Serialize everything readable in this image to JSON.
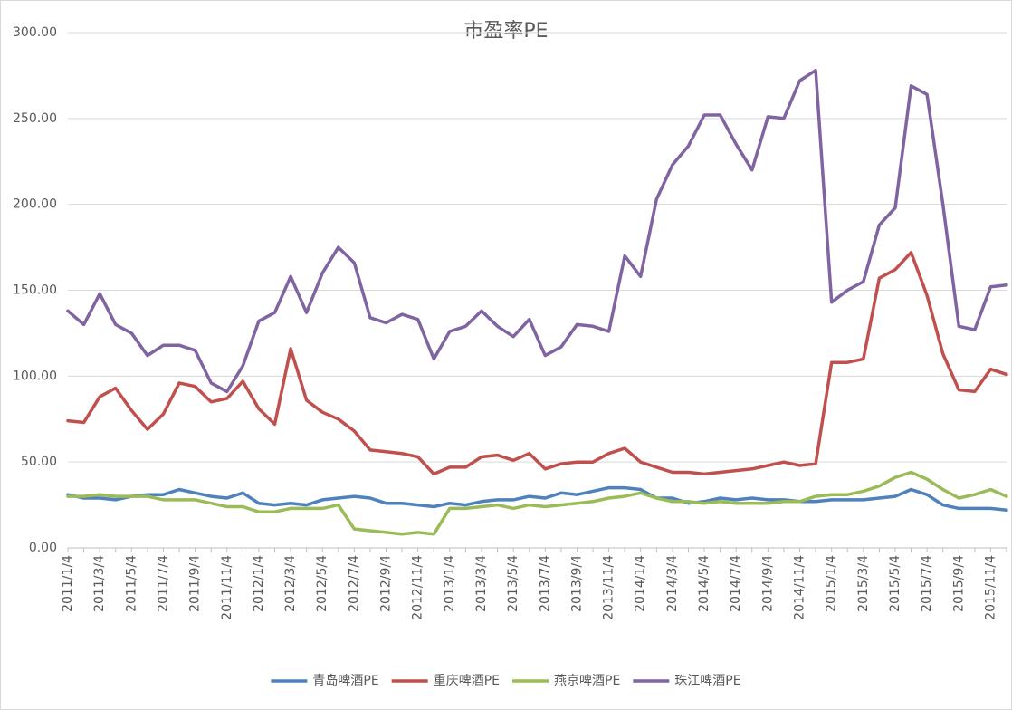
{
  "chart_data": {
    "type": "line",
    "title": "市盈率PE",
    "categories": [
      "2011/1/4",
      null,
      "2011/3/4",
      null,
      "2011/5/4",
      null,
      "2011/7/4",
      null,
      "2011/9/4",
      null,
      "2011/11/4",
      null,
      "2012/1/4",
      null,
      "2012/3/4",
      null,
      "2012/5/4",
      null,
      "2012/7/4",
      null,
      "2012/9/4",
      null,
      "2012/11/4",
      null,
      "2013/1/4",
      null,
      "2013/3/4",
      null,
      "2013/5/4",
      null,
      "2013/7/4",
      null,
      "2013/9/4",
      null,
      "2013/11/4",
      null,
      "2014/1/4",
      null,
      "2014/3/4",
      null,
      "2014/5/4",
      null,
      "2014/7/4",
      null,
      "2014/9/4",
      null,
      "2014/11/4",
      null,
      "2015/1/4",
      null,
      "2015/3/4",
      null,
      "2015/5/4",
      null,
      "2015/7/4",
      null,
      "2015/9/4",
      null,
      "2015/11/4",
      null
    ],
    "series": [
      {
        "name": "青岛啤酒PE",
        "color": "#4f81bd",
        "values": [
          31,
          29,
          29,
          28,
          30,
          31,
          31,
          34,
          32,
          30,
          29,
          32,
          26,
          25,
          26,
          25,
          28,
          29,
          30,
          29,
          26,
          26,
          25,
          24,
          26,
          25,
          27,
          28,
          28,
          30,
          29,
          32,
          31,
          33,
          35,
          35,
          34,
          29,
          29,
          26,
          27,
          29,
          28,
          29,
          28,
          28,
          27,
          27,
          28,
          28,
          28,
          29,
          30,
          34,
          31,
          25,
          23,
          23,
          23,
          22
        ]
      },
      {
        "name": "重庆啤酒PE",
        "color": "#c0504d",
        "values": [
          74,
          73,
          88,
          93,
          80,
          69,
          78,
          96,
          94,
          85,
          87,
          97,
          81,
          72,
          116,
          86,
          79,
          75,
          68,
          57,
          56,
          55,
          53,
          43,
          47,
          47,
          53,
          54,
          51,
          55,
          46,
          49,
          50,
          50,
          55,
          58,
          50,
          47,
          44,
          44,
          43,
          44,
          45,
          46,
          48,
          50,
          48,
          49,
          108,
          108,
          110,
          157,
          162,
          172,
          147,
          113,
          92,
          91,
          104,
          101
        ]
      },
      {
        "name": "燕京啤酒PE",
        "color": "#9bbb59",
        "values": [
          30,
          30,
          31,
          30,
          30,
          30,
          28,
          28,
          28,
          26,
          24,
          24,
          21,
          21,
          23,
          23,
          23,
          25,
          11,
          10,
          9,
          8,
          9,
          8,
          23,
          23,
          24,
          25,
          23,
          25,
          24,
          25,
          26,
          27,
          29,
          30,
          32,
          29,
          27,
          27,
          26,
          27,
          26,
          26,
          26,
          27,
          27,
          30,
          31,
          31,
          33,
          36,
          41,
          44,
          40,
          34,
          29,
          31,
          34,
          30
        ]
      },
      {
        "name": "珠江啤酒PE",
        "color": "#8064a2",
        "values": [
          138,
          130,
          148,
          130,
          125,
          112,
          118,
          118,
          115,
          96,
          91,
          106,
          132,
          137,
          158,
          137,
          160,
          175,
          166,
          134,
          131,
          136,
          133,
          110,
          126,
          129,
          138,
          129,
          123,
          133,
          112,
          117,
          130,
          129,
          126,
          170,
          158,
          203,
          223,
          234,
          252,
          252,
          235,
          220,
          251,
          250,
          272,
          278,
          143,
          150,
          155,
          188,
          198,
          269,
          264,
          200,
          129,
          127,
          152,
          153
        ]
      }
    ],
    "ylim": [
      0,
      300
    ],
    "yticks": [
      {
        "value": 0,
        "label": "0.00"
      },
      {
        "value": 50,
        "label": "50.00"
      },
      {
        "value": 100,
        "label": "100.00"
      },
      {
        "value": 150,
        "label": "150.00"
      },
      {
        "value": 200,
        "label": "200.00"
      },
      {
        "value": 250,
        "label": "250.00"
      },
      {
        "value": 300,
        "label": "300.00"
      }
    ],
    "grid": true,
    "legend": "bottom"
  }
}
